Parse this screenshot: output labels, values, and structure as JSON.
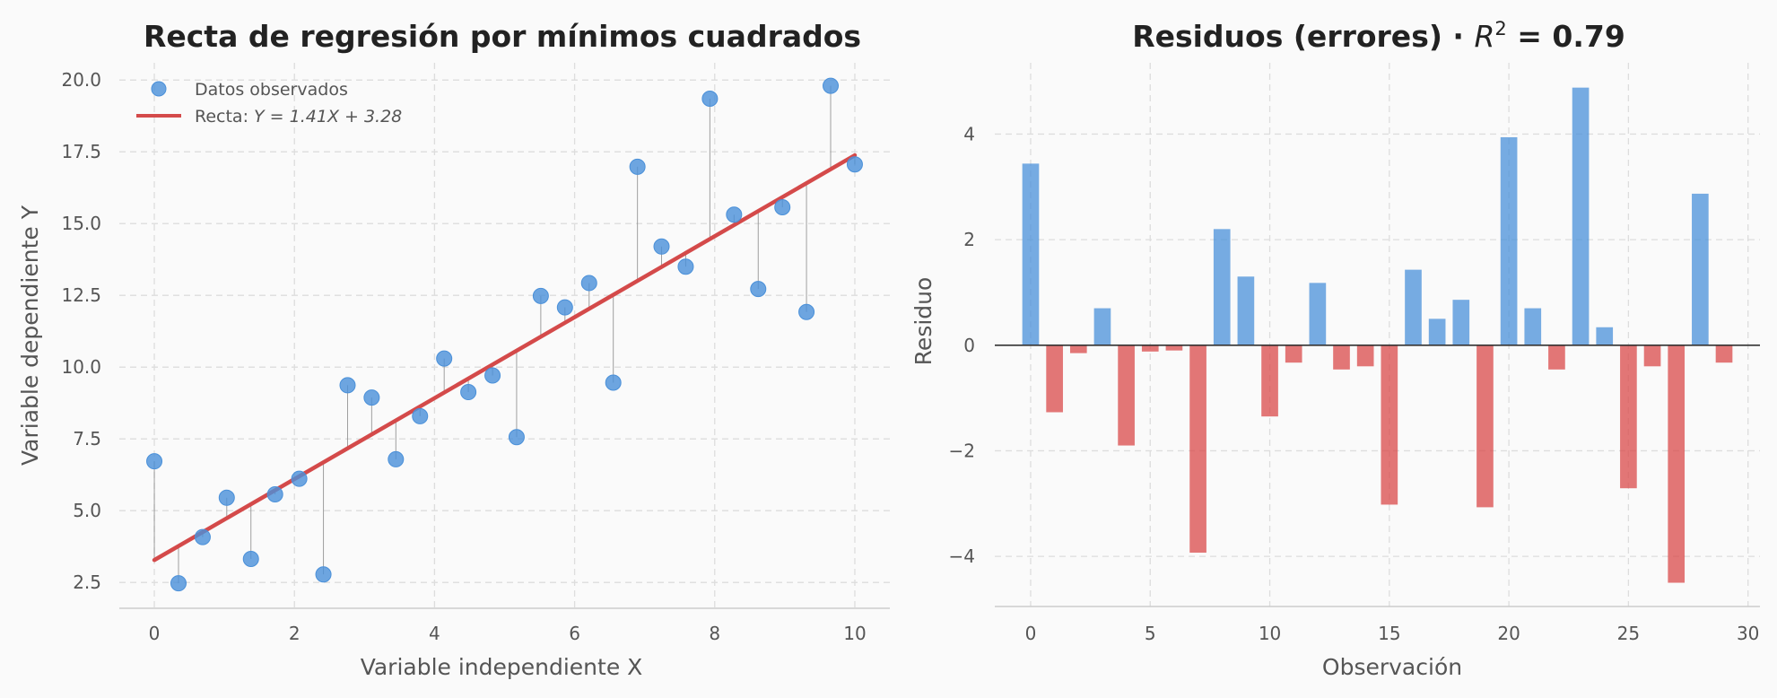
{
  "chart_data": [
    {
      "type": "scatter",
      "title": "Recta de regresión por mínimos cuadrados",
      "xlabel": "Variable independiente X",
      "ylabel": "Variable dependiente Y",
      "xlim": [
        -0.5,
        10.5
      ],
      "ylim": [
        1.6,
        20.6
      ],
      "xticks": [
        0,
        2,
        4,
        6,
        8,
        10
      ],
      "yticks": [
        2.5,
        5.0,
        7.5,
        10.0,
        12.5,
        15.0,
        17.5,
        20.0
      ],
      "xtick_labels": [
        "0",
        "2",
        "4",
        "6",
        "8",
        "10"
      ],
      "ytick_labels": [
        "2.5",
        "5.0",
        "7.5",
        "10.0",
        "12.5",
        "15.0",
        "17.5",
        "20.0"
      ],
      "grid": true,
      "legend_position": "top-left",
      "series": [
        {
          "name": "Datos observados",
          "color": "#4a90d9",
          "x": [
            0.0,
            0.345,
            0.69,
            1.034,
            1.379,
            1.724,
            2.069,
            2.414,
            2.759,
            3.103,
            3.448,
            3.793,
            4.138,
            4.483,
            4.828,
            5.172,
            5.517,
            5.862,
            6.207,
            6.552,
            6.897,
            7.241,
            7.586,
            7.931,
            8.276,
            8.621,
            8.966,
            9.31,
            9.655,
            10.0
          ],
          "y": [
            6.72,
            2.47,
            4.08,
            5.45,
            3.32,
            5.57,
            6.11,
            2.78,
            9.37,
            8.94,
            6.79,
            8.29,
            10.3,
            9.13,
            9.71,
            7.56,
            12.48,
            12.08,
            12.93,
            9.46,
            16.98,
            14.2,
            13.5,
            19.35,
            15.31,
            12.72,
            15.57,
            11.92,
            19.8,
            17.06
          ]
        },
        {
          "name": "Recta: $Y = 1.41X + 3.28$",
          "color": "#d44a4a",
          "line": {
            "slope": 1.41,
            "intercept": 3.28,
            "x_from": 0,
            "x_to": 10
          }
        }
      ],
      "legend": [
        {
          "kind": "marker",
          "label_pre": "Datos observados",
          "label_math": "",
          "label_post": ""
        },
        {
          "kind": "line",
          "label_pre": "Recta: ",
          "label_math": "Y = 1.41X + 3.28",
          "label_post": ""
        }
      ]
    },
    {
      "type": "bar",
      "title": "Residuos (errores) · $R^2$ = 0.79",
      "title_parts": {
        "pre": "Residuos (errores) · ",
        "math": "R",
        "sup": "2",
        "post": " = 0.79"
      },
      "xlabel": "Observación",
      "ylabel": "Residuo",
      "xlim": [
        -1.5,
        30.5
      ],
      "ylim": [
        -4.95,
        5.35
      ],
      "xticks": [
        0,
        5,
        10,
        15,
        20,
        25,
        30
      ],
      "yticks": [
        -4,
        -2,
        0,
        2,
        4
      ],
      "xtick_labels": [
        "0",
        "5",
        "10",
        "15",
        "20",
        "25",
        "30"
      ],
      "ytick_labels": [
        "−4",
        "−2",
        "0",
        "2",
        "4"
      ],
      "grid": true,
      "positive_color": "#4a90d9",
      "negative_color": "#d94a4a",
      "categories": [
        0,
        1,
        2,
        3,
        4,
        5,
        6,
        7,
        8,
        9,
        10,
        11,
        12,
        13,
        14,
        15,
        16,
        17,
        18,
        19,
        20,
        21,
        22,
        23,
        24,
        25,
        26,
        27,
        28,
        29
      ],
      "values": [
        3.44,
        -1.27,
        -0.15,
        0.7,
        -1.9,
        -0.12,
        -0.1,
        -3.93,
        2.2,
        1.3,
        -1.35,
        -0.33,
        1.18,
        -0.46,
        -0.4,
        -3.02,
        1.43,
        0.5,
        0.86,
        -3.07,
        3.94,
        0.7,
        -0.46,
        4.88,
        0.34,
        -2.71,
        -0.4,
        -4.5,
        2.87,
        -0.33
      ]
    }
  ]
}
